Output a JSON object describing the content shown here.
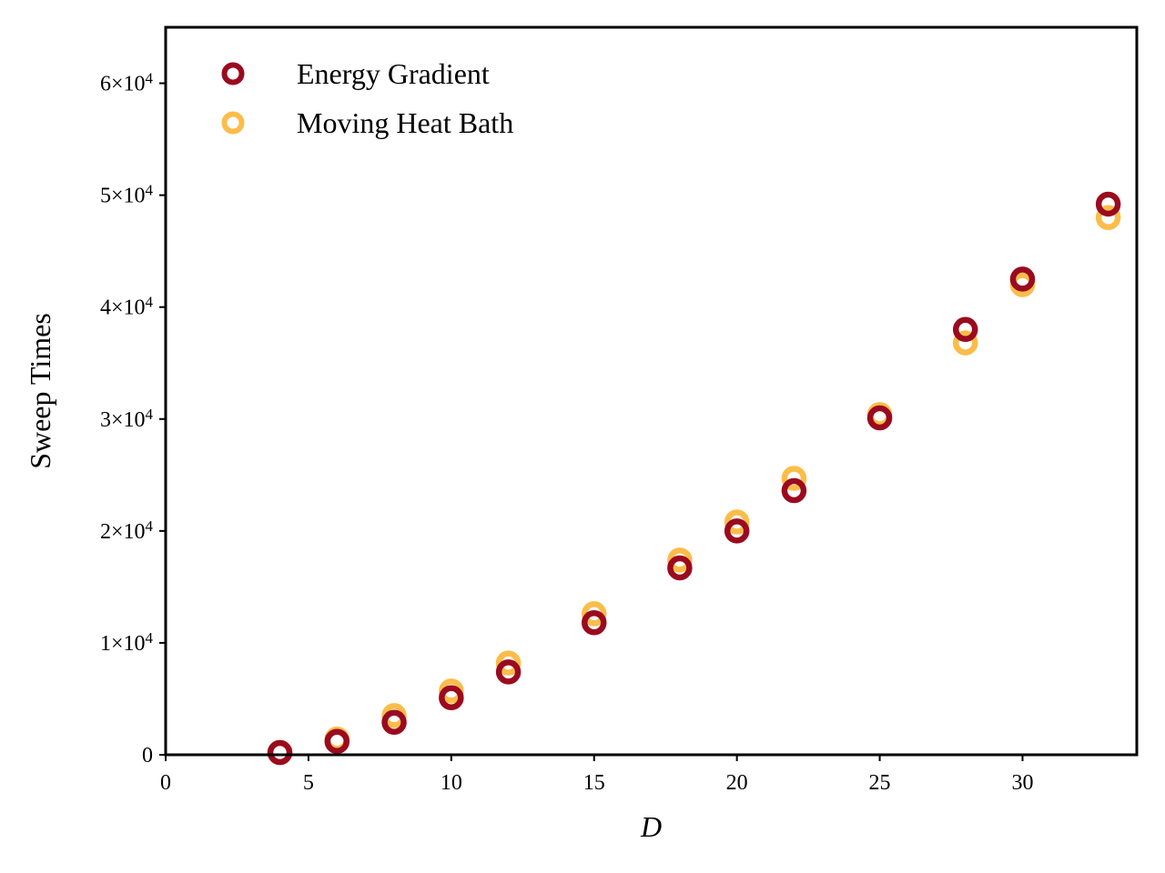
{
  "chart_data": {
    "type": "scatter",
    "title": "",
    "xlabel": "D",
    "ylabel": "Sweep Times",
    "xlim": [
      0,
      34
    ],
    "ylim": [
      0,
      65000
    ],
    "xticks": [
      0,
      5,
      10,
      15,
      20,
      25,
      30
    ],
    "xtick_labels": [
      "0",
      "5",
      "10",
      "15",
      "20",
      "25",
      "30"
    ],
    "yticks": [
      0,
      10000,
      20000,
      30000,
      40000,
      50000,
      60000
    ],
    "ytick_labels": [
      {
        "mantissa": "0",
        "exp": ""
      },
      {
        "mantissa": "1×10",
        "exp": "4"
      },
      {
        "mantissa": "2×10",
        "exp": "4"
      },
      {
        "mantissa": "3×10",
        "exp": "4"
      },
      {
        "mantissa": "4×10",
        "exp": "4"
      },
      {
        "mantissa": "5×10",
        "exp": "4"
      },
      {
        "mantissa": "6×10",
        "exp": "4"
      }
    ],
    "grid": false,
    "legend_position": "top-left",
    "series": [
      {
        "name": "Energy Gradient",
        "color": "#9b0a1e",
        "marker": "hollow-circle",
        "x": [
          4,
          6,
          8,
          10,
          12,
          15,
          18,
          20,
          22,
          25,
          28,
          30,
          33
        ],
        "y": [
          200,
          1200,
          2900,
          5100,
          7400,
          11800,
          16700,
          20000,
          23600,
          30100,
          38000,
          42500,
          49200
        ]
      },
      {
        "name": "Moving Heat Bath",
        "color": "#fbbd4a",
        "marker": "hollow-circle",
        "x": [
          4,
          6,
          8,
          10,
          12,
          15,
          18,
          20,
          22,
          25,
          28,
          30,
          33
        ],
        "y": [
          200,
          1400,
          3500,
          5700,
          8200,
          12600,
          17400,
          20800,
          24700,
          30400,
          36800,
          42000,
          48000
        ]
      }
    ]
  }
}
